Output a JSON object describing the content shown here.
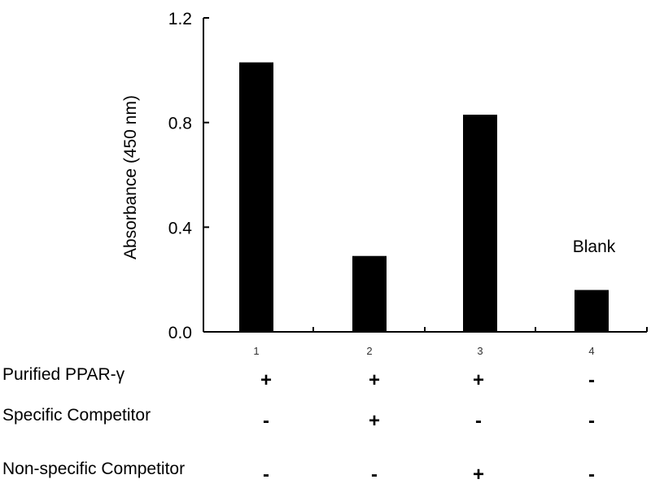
{
  "chart_data": {
    "type": "bar",
    "categories": [
      "1",
      "2",
      "3",
      "4"
    ],
    "values": [
      1.03,
      0.29,
      0.83,
      0.16
    ],
    "ylabel": "Absorbance (450 nm)",
    "ylim": [
      0,
      1.2
    ],
    "yticks": [
      "0.0",
      "0.4",
      "0.8",
      "1.2"
    ],
    "bar_color": "#000000",
    "grid": false,
    "annotations": [
      {
        "category": "4",
        "text": "Blank"
      }
    ],
    "conditions": [
      {
        "label": "Purified PPAR-γ",
        "signs": [
          "+",
          "+",
          "+",
          "-"
        ]
      },
      {
        "label": "Specific Competitor",
        "signs": [
          "-",
          "+",
          "-",
          "-"
        ]
      },
      {
        "label": "Non-specific Competitor",
        "signs": [
          "-",
          "-",
          "+",
          "-"
        ]
      }
    ]
  }
}
